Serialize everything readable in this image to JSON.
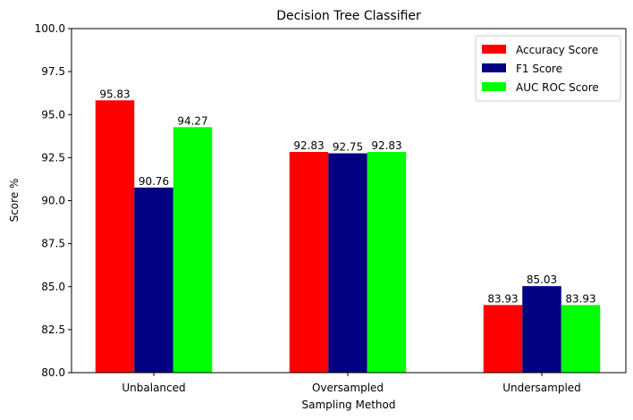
{
  "chart_data": {
    "type": "bar",
    "title": "Decision Tree Classifier",
    "xlabel": "Sampling Method",
    "ylabel": "Score %",
    "categories": [
      "Unbalanced",
      "Oversampled",
      "Undersampled"
    ],
    "series": [
      {
        "name": "Accuracy Score",
        "values": [
          95.83,
          92.83,
          83.93
        ],
        "color": "#ff0000",
        "labels": [
          "95.83",
          "92.83",
          "83.93"
        ]
      },
      {
        "name": "F1 Score",
        "values": [
          90.76,
          92.75,
          85.03
        ],
        "color": "#000080",
        "labels": [
          "90.76",
          "92.75",
          "85.03"
        ]
      },
      {
        "name": "AUC ROC Score",
        "values": [
          94.27,
          92.83,
          83.93
        ],
        "color": "#00ff00",
        "labels": [
          "94.27",
          "92.83",
          "83.93"
        ]
      }
    ],
    "ylim": [
      80,
      100
    ],
    "yticks": [
      "80.0",
      "82.5",
      "85.0",
      "87.5",
      "90.0",
      "92.5",
      "95.0",
      "97.5",
      "100.0"
    ],
    "grid": false,
    "legend_position": "top-right"
  }
}
